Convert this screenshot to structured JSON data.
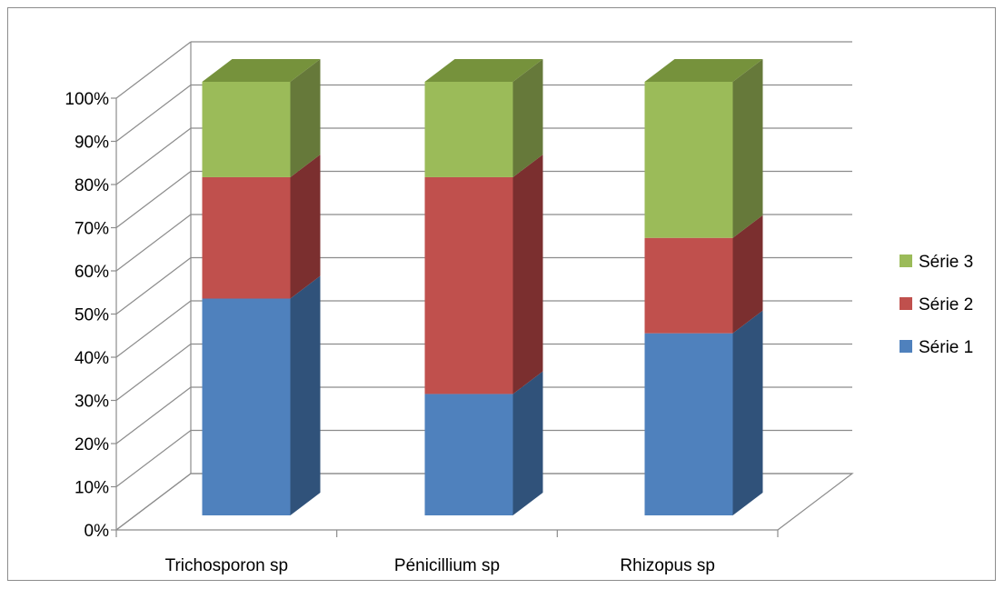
{
  "chart_data": {
    "type": "bar",
    "stacked": "percent",
    "three_d": true,
    "categories": [
      "Trichosporon sp",
      "Pénicillium sp",
      "Rhizopus sp"
    ],
    "series": [
      {
        "name": "Série 1",
        "values": [
          50,
          28,
          42
        ],
        "color": "#4f81bd",
        "side_color": "#30527a",
        "top_color": "#3a6596"
      },
      {
        "name": "Série 2",
        "values": [
          28,
          50,
          22
        ],
        "color": "#c0504d",
        "side_color": "#7b2f2f",
        "top_color": "#943d3a"
      },
      {
        "name": "Série 3",
        "values": [
          22,
          22,
          36
        ],
        "color": "#9bbb59",
        "side_color": "#66793a",
        "top_color": "#76923c"
      }
    ],
    "yticks": [
      "0%",
      "10%",
      "20%",
      "30%",
      "40%",
      "50%",
      "60%",
      "70%",
      "80%",
      "90%",
      "100%"
    ],
    "ylim": [
      0,
      100
    ],
    "grid": true,
    "legend_position": "right",
    "legend_order": [
      "Série 3",
      "Série 2",
      "Série 1"
    ]
  }
}
